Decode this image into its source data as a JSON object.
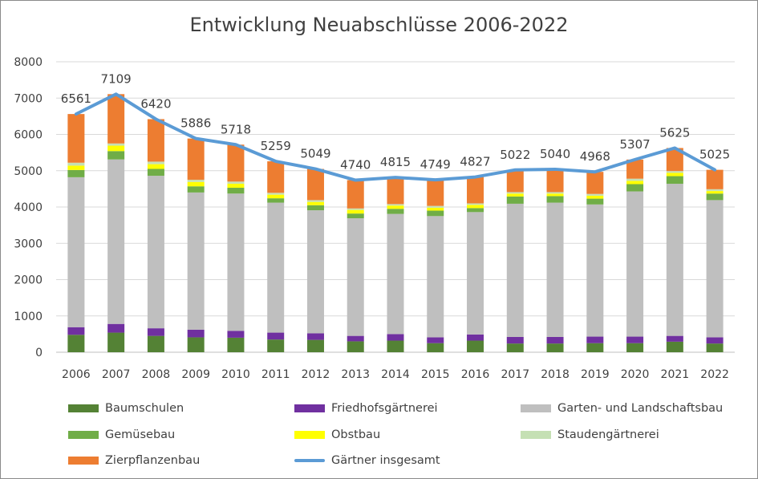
{
  "chart_data": {
    "type": "bar",
    "stacked": true,
    "title": "Entwicklung Neuabschlüsse 2006-2022",
    "categories": [
      "2006",
      "2007",
      "2008",
      "2009",
      "2010",
      "2011",
      "2012",
      "2013",
      "2014",
      "2015",
      "2016",
      "2017",
      "2018",
      "2019",
      "2020",
      "2021",
      "2022"
    ],
    "ylim": [
      0,
      8000
    ],
    "yticks": [
      "0",
      "1000",
      "2000",
      "3000",
      "4000",
      "5000",
      "6000",
      "7000",
      "8000"
    ],
    "grid": true,
    "legend_position": "bottom",
    "series": [
      {
        "name": "Baumschulen",
        "color": "#548235",
        "values": [
          480,
          540,
          450,
          410,
          400,
          350,
          340,
          300,
          320,
          250,
          320,
          240,
          240,
          250,
          250,
          290,
          240
        ]
      },
      {
        "name": "Friedhofsgärtnerei",
        "color": "#7030a0",
        "values": [
          210,
          240,
          210,
          210,
          190,
          190,
          180,
          150,
          180,
          160,
          170,
          180,
          180,
          180,
          180,
          160,
          170
        ]
      },
      {
        "name": "Garten- und Landschaftsbau",
        "color": "#bfbfbf",
        "values": [
          4130,
          4530,
          4200,
          3780,
          3780,
          3580,
          3390,
          3240,
          3310,
          3340,
          3370,
          3670,
          3700,
          3640,
          4000,
          4190,
          3780
        ]
      },
      {
        "name": "Gemüsebau",
        "color": "#70ad47",
        "values": [
          200,
          230,
          190,
          170,
          160,
          120,
          140,
          130,
          140,
          150,
          110,
          200,
          180,
          160,
          200,
          210,
          180
        ]
      },
      {
        "name": "Obstbau",
        "color": "#ffff00",
        "values": [
          120,
          150,
          130,
          120,
          110,
          100,
          90,
          100,
          90,
          80,
          90,
          80,
          70,
          80,
          90,
          90,
          70
        ]
      },
      {
        "name": "Staudengärtnerei",
        "color": "#c5e0b4",
        "values": [
          80,
          60,
          70,
          60,
          60,
          50,
          50,
          40,
          40,
          50,
          40,
          40,
          40,
          50,
          60,
          50,
          50
        ]
      },
      {
        "name": "Zierpflanzenbau",
        "color": "#ed7d31",
        "values": [
          1341,
          1359,
          1170,
          1136,
          1018,
          869,
          859,
          780,
          735,
          719,
          727,
          612,
          630,
          608,
          527,
          635,
          535
        ]
      }
    ],
    "line": {
      "name": "Gärtner insgesamt",
      "color": "#5b9bd5",
      "values": [
        6561,
        7109,
        6420,
        5886,
        5718,
        5259,
        5049,
        4740,
        4815,
        4749,
        4827,
        5022,
        5040,
        4968,
        5307,
        5625,
        5025
      ]
    },
    "data_labels": [
      "6561",
      "7109",
      "6420",
      "5886",
      "5718",
      "5259",
      "5049",
      "4740",
      "4815",
      "4749",
      "4827",
      "5022",
      "5040",
      "4968",
      "5307",
      "5625",
      "5025"
    ]
  }
}
